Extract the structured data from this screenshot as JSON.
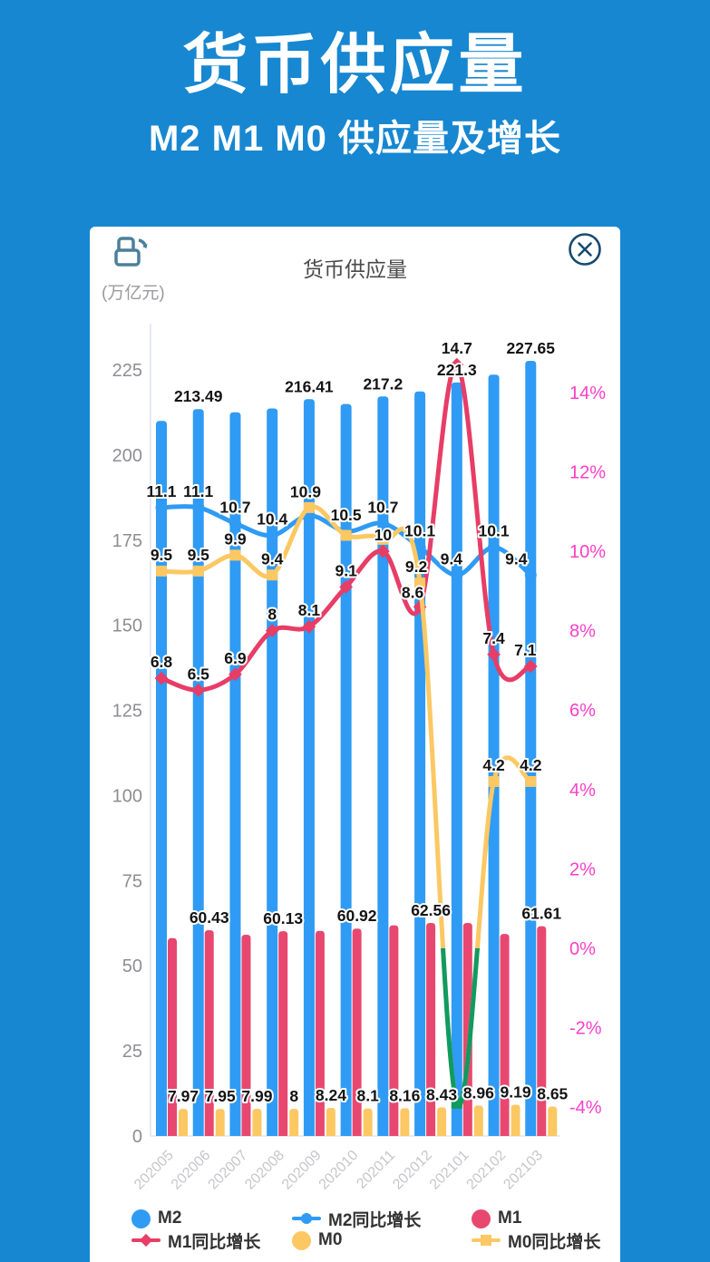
{
  "hero": {
    "title": "货币供应量",
    "subtitle": "M2 M1 M0 供应量及增长"
  },
  "card": {
    "title": "货币供应量",
    "unit_label": "(万亿元)"
  },
  "chart_data": {
    "type": "bar+line, dual y-axis",
    "title": "货币供应量",
    "unit": "万亿元",
    "categories": [
      "202005",
      "202006",
      "202007",
      "202008",
      "202009",
      "202010",
      "202011",
      "202012",
      "202101",
      "202102",
      "202103"
    ],
    "left_axis": {
      "ticks": [
        225,
        200,
        175,
        150,
        125,
        100,
        75,
        50,
        25,
        0
      ],
      "min": 0,
      "max": 225,
      "color": "#8e8e93"
    },
    "right_axis": {
      "ticks": [
        "14%",
        "12%",
        "10%",
        "8%",
        "6%",
        "4%",
        "2%",
        "0%",
        "-2%",
        "-4%"
      ],
      "min": -4,
      "max": 14,
      "color": "#fa3fc8"
    },
    "grid": false,
    "series": [
      {
        "name": "M2",
        "type": "bar",
        "axis": "left",
        "color": "#2f9bf4",
        "values": [
          210.02,
          213.49,
          212.55,
          213.68,
          216.41,
          214.97,
          217.2,
          218.68,
          221.3,
          223.6,
          227.65
        ],
        "labels": [
          null,
          "213.49",
          null,
          null,
          "216.41",
          null,
          "217.2",
          null,
          "221.3",
          null,
          "227.65"
        ]
      },
      {
        "name": "M1",
        "type": "bar",
        "axis": "left",
        "color": "#e8486f",
        "values": [
          58.11,
          60.43,
          59.12,
          60.13,
          60.23,
          60.92,
          61.86,
          62.56,
          62.56,
          59.35,
          61.61
        ],
        "labels": [
          null,
          "60.43",
          null,
          "60.13",
          null,
          "60.92",
          null,
          "62.56",
          null,
          null,
          "61.61"
        ]
      },
      {
        "name": "M0",
        "type": "bar",
        "axis": "left",
        "color": "#fbc863",
        "values": [
          7.97,
          7.95,
          7.99,
          8,
          8.24,
          8.1,
          8.16,
          8.43,
          8.96,
          9.19,
          8.65
        ],
        "labels": [
          "7.97",
          "7.95",
          "7.99",
          "8",
          "8.24",
          "8.1",
          "8.16",
          "8.43",
          "8.96",
          "9.19",
          "8.65"
        ]
      },
      {
        "name": "M2同比增长",
        "type": "line",
        "marker": "circle",
        "axis": "right",
        "color": "#2f9bf4",
        "values": [
          11.1,
          11.1,
          10.7,
          10.4,
          10.9,
          10.5,
          10.7,
          10.1,
          9.4,
          10.1,
          9.4
        ],
        "labels": [
          "11.1",
          "11.1",
          "10.7",
          "10.4",
          "10.9",
          "10.5",
          "10.7",
          "10.1",
          "9.4",
          "10.1",
          "9.4"
        ],
        "ldx": {
          "4": -4,
          "8": -6,
          "10": -16
        },
        "ldy": {
          "4": -8
        }
      },
      {
        "name": "M1同比增长",
        "type": "line",
        "marker": "diamond",
        "axis": "right",
        "color": "#e73d66",
        "values": [
          6.8,
          6.5,
          6.9,
          8,
          8.1,
          9.1,
          10,
          8.6,
          14.7,
          7.4,
          7.1
        ],
        "labels": [
          "6.8",
          "6.5",
          "6.9",
          "8",
          "8.1",
          "9.1",
          "10",
          "8.6",
          "14.7",
          "7.4",
          "7.1"
        ],
        "ldx": {
          "7": -8,
          "10": -6
        },
        "ldy": {
          "7": 2
        }
      },
      {
        "name": "M0同比增长",
        "type": "line",
        "marker": "square",
        "axis": "right",
        "color": "#fbc863",
        "negative_color": "#0f9b5f",
        "values": [
          9.5,
          9.5,
          9.9,
          9.4,
          11.1,
          10.4,
          10.3,
          9.2,
          -3.9,
          4.2,
          4.2
        ],
        "labels": [
          "9.5",
          "9.5",
          "9.9",
          "9.4",
          null,
          null,
          null,
          "9.2",
          null,
          "4.2",
          "4.2"
        ],
        "ldx": {
          "7": -4
        }
      }
    ]
  },
  "legend": {
    "items": [
      {
        "label": "M2",
        "type": "circle",
        "color": "#2f9bf4"
      },
      {
        "label": "M2同比增长",
        "type": "line-circle",
        "color": "#2f9bf4"
      },
      {
        "label": "M1",
        "type": "circle",
        "color": "#e8486f"
      },
      {
        "label": "M1同比增长",
        "type": "line-diamond",
        "color": "#e73d66"
      },
      {
        "label": "M0",
        "type": "circle",
        "color": "#fbc863"
      },
      {
        "label": "M0同比增长",
        "type": "line-square",
        "color": "#fbc863"
      }
    ]
  }
}
